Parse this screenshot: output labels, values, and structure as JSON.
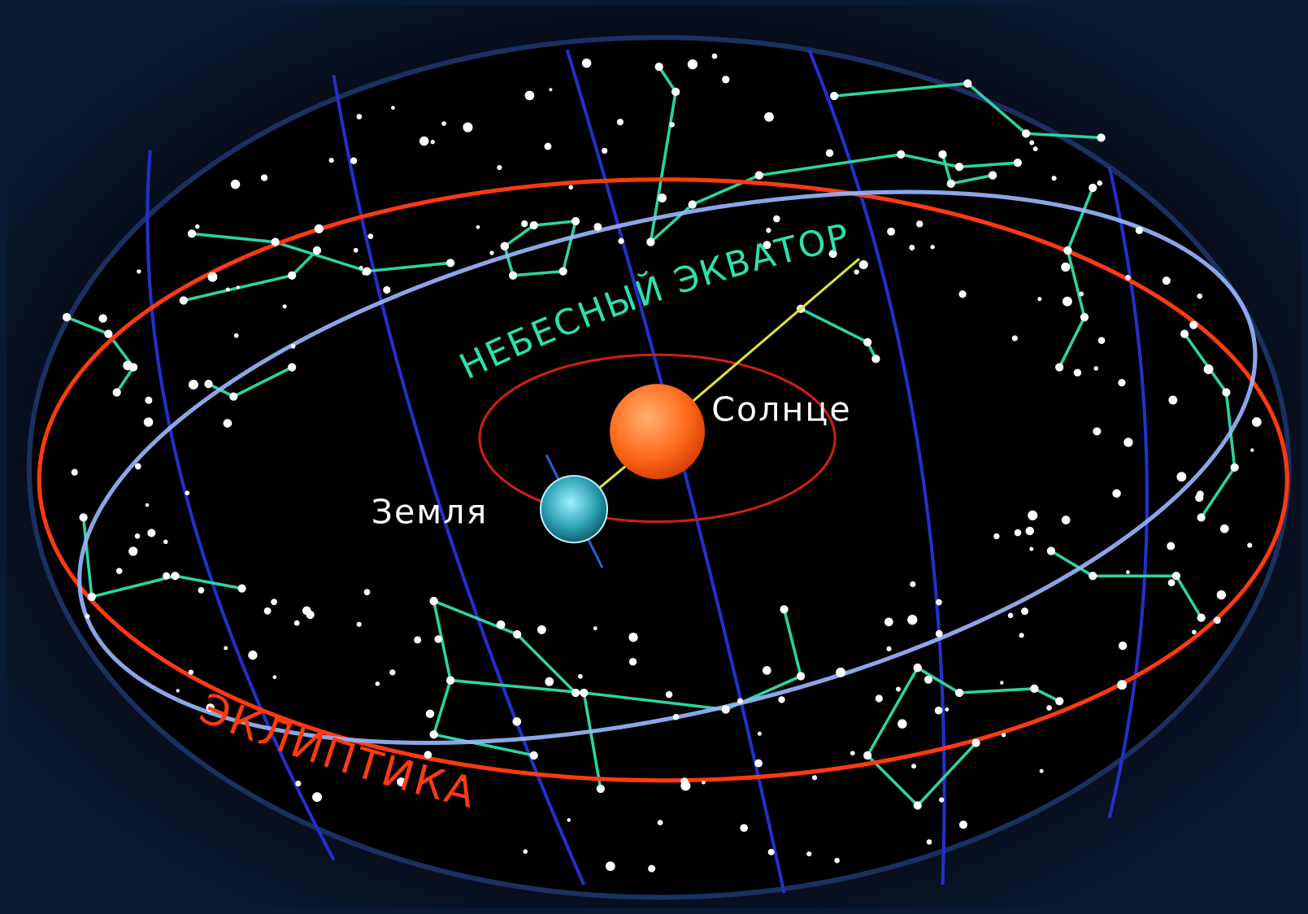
{
  "labels": {
    "celestial_equator": "НЕБЕСНЫЙ ЭКВАТОР",
    "sun": "Солнце",
    "earth": "Земля",
    "ecliptic": "ЭКЛИПТИКА"
  }
}
